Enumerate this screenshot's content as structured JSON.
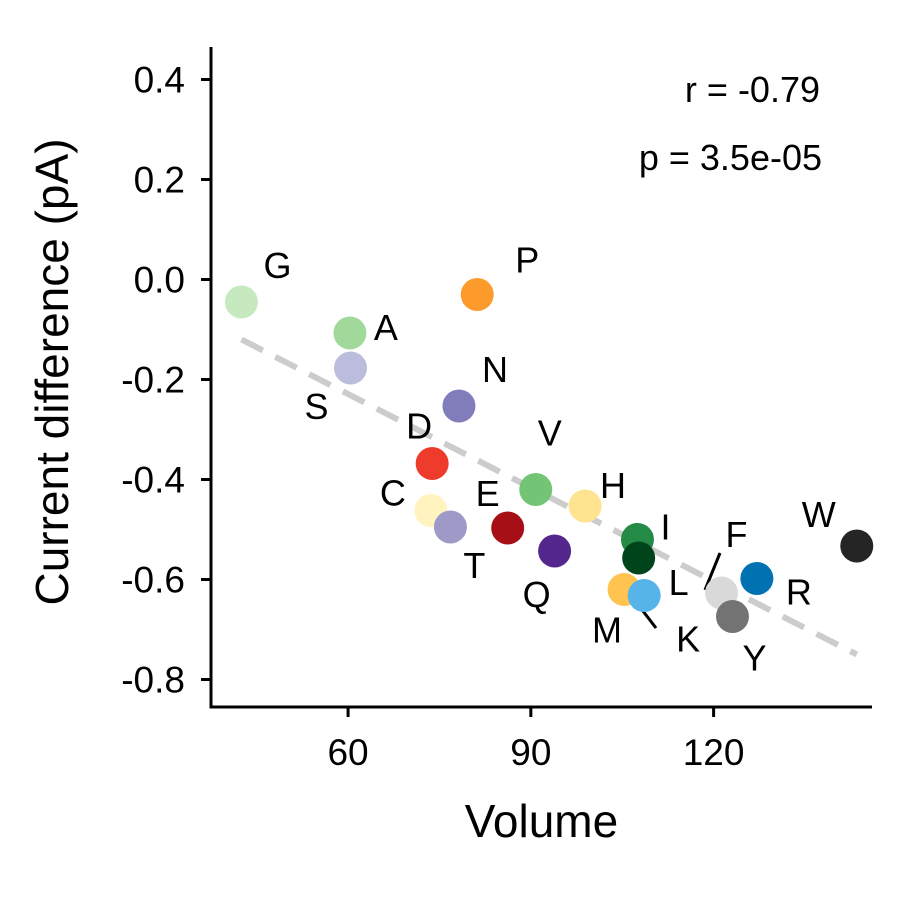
{
  "chart_data": {
    "type": "scatter",
    "xlabel": "Volume",
    "ylabel": "Current difference (pA)",
    "xlim": [
      37.5,
      146
    ],
    "ylim": [
      -0.855,
      0.465
    ],
    "xticks": [
      60,
      90,
      120
    ],
    "yticks": [
      0.4,
      0.2,
      0.0,
      -0.2,
      -0.4,
      -0.6,
      -0.8
    ],
    "xtick_labels": [
      "60",
      "90",
      "120"
    ],
    "ytick_labels": [
      "0.4",
      "0.2",
      "0.0",
      "-0.2",
      "-0.4",
      "-0.6",
      "-0.8"
    ],
    "grid": false,
    "legend": "none",
    "annotations": {
      "r": "r = -0.79",
      "p": "p = 3.5e-05"
    },
    "trend_line": {
      "style": "dashed",
      "color": "#cccccc",
      "x": [
        42.5,
        143.5
      ],
      "y": [
        -0.12,
        -0.75
      ]
    },
    "points": [
      {
        "label": "G",
        "x": 42.5,
        "y": -0.045,
        "color": "#c7e9c0"
      },
      {
        "label": "A",
        "x": 60.3,
        "y": -0.107,
        "color": "#a1d99b"
      },
      {
        "label": "S",
        "x": 60.4,
        "y": -0.177,
        "color": "#bcbddc"
      },
      {
        "label": "P",
        "x": 81.2,
        "y": -0.03,
        "color": "#fd9a2c"
      },
      {
        "label": "N",
        "x": 78.2,
        "y": -0.253,
        "color": "#807dba"
      },
      {
        "label": "D",
        "x": 73.8,
        "y": -0.368,
        "color": "#ef3b2c"
      },
      {
        "label": "V",
        "x": 90.8,
        "y": -0.42,
        "color": "#74c476"
      },
      {
        "label": "H",
        "x": 98.9,
        "y": -0.453,
        "color": "#fee391"
      },
      {
        "label": "C",
        "x": 73.6,
        "y": -0.462,
        "color": "#fff3c0"
      },
      {
        "label": "E",
        "x": 86.2,
        "y": -0.497,
        "color": "#a50f15"
      },
      {
        "label": "T",
        "x": 76.8,
        "y": -0.495,
        "color": "#9e9ac8"
      },
      {
        "label": "Q",
        "x": 93.9,
        "y": -0.543,
        "color": "#54278f"
      },
      {
        "label": "I",
        "x": 107.5,
        "y": -0.52,
        "color": "#238b45"
      },
      {
        "label": "L",
        "x": 107.7,
        "y": -0.557,
        "color": "#00441b"
      },
      {
        "label": "M",
        "x": 105.3,
        "y": -0.62,
        "color": "#fec44f"
      },
      {
        "label": "K",
        "x": 108.6,
        "y": -0.632,
        "color": "#56b4e9"
      },
      {
        "label": "F",
        "x": 121.3,
        "y": -0.627,
        "color": "#d9d9d9"
      },
      {
        "label": "Y",
        "x": 123.1,
        "y": -0.674,
        "color": "#737373"
      },
      {
        "label": "R",
        "x": 127.1,
        "y": -0.598,
        "color": "#0072b2"
      },
      {
        "label": "W",
        "x": 143.5,
        "y": -0.533,
        "color": "#252525"
      }
    ]
  }
}
